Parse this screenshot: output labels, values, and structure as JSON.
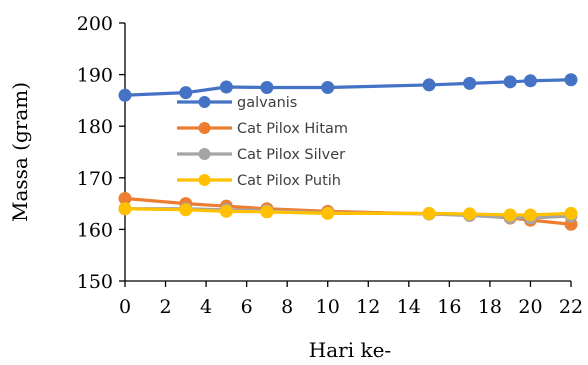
{
  "chart_data": {
    "type": "line",
    "title": "",
    "xlabel": "Hari ke-",
    "ylabel": "Massa (gram)",
    "xlim": [
      0,
      22
    ],
    "ylim": [
      150,
      200
    ],
    "x_ticks": [
      0,
      2,
      4,
      6,
      8,
      10,
      12,
      14,
      16,
      18,
      20,
      22
    ],
    "y_ticks": [
      150,
      160,
      170,
      180,
      190,
      200
    ],
    "grid": false,
    "legend_position": "inside-left",
    "x": [
      0,
      3,
      5,
      7,
      10,
      15,
      17,
      19,
      20,
      22
    ],
    "series": [
      {
        "name": "galvanis",
        "color": "#4472C4",
        "values": [
          186,
          186.5,
          187.6,
          187.5,
          187.5,
          188,
          188.3,
          188.6,
          188.8,
          189
        ]
      },
      {
        "name": "Cat Pilox Hitam",
        "color": "#ED7D31",
        "values": [
          166,
          165,
          164.5,
          164,
          163.5,
          163,
          162.8,
          162.2,
          161.8,
          161
        ]
      },
      {
        "name": "Cat Pilox Silver",
        "color": "#A5A5A5",
        "values": [
          164,
          164,
          163.8,
          163.6,
          163.2,
          163,
          162.7,
          162.3,
          162.2,
          162.6
        ]
      },
      {
        "name": "Cat Pilox Putih",
        "color": "#FFC000",
        "values": [
          164,
          163.8,
          163.5,
          163.4,
          163.1,
          163.1,
          163,
          162.8,
          162.8,
          163.1
        ]
      }
    ]
  }
}
